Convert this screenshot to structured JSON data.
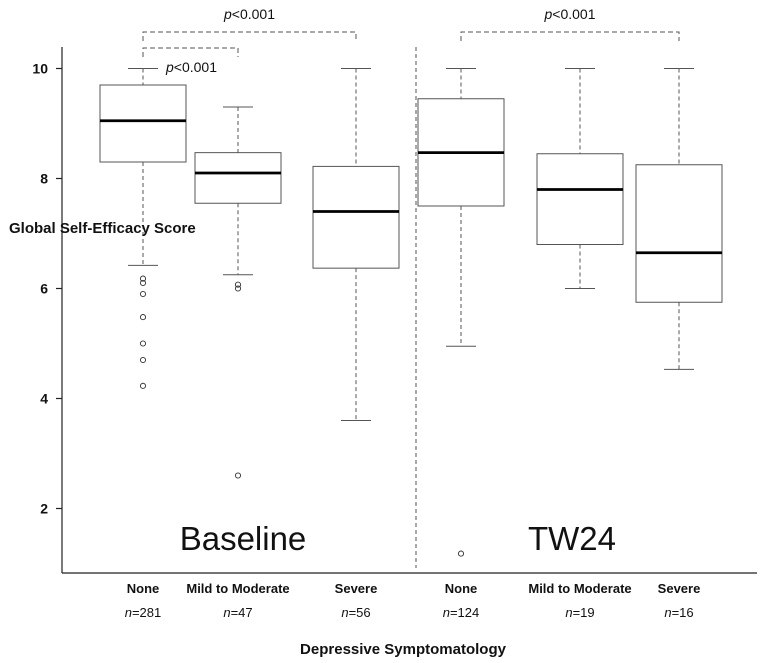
{
  "chart_data": {
    "type": "box",
    "ylabel": "Global Self-Efficacy Score",
    "xlabel": "Depressive Symptomatology",
    "yticks": [
      2,
      4,
      6,
      8,
      10
    ],
    "ylim": [
      0.8,
      10.4
    ],
    "panels": [
      "Baseline",
      "TW24"
    ],
    "groups": [
      {
        "panel": "Baseline",
        "label": "None",
        "n_prefix": "n",
        "n_value": "=281",
        "whisker_low": 6.42,
        "q1": 8.3,
        "median": 9.05,
        "q3": 9.7,
        "whisker_high": 10.0,
        "outliers": [
          6.18,
          6.1,
          5.9,
          5.48,
          5.0,
          4.7,
          4.23
        ]
      },
      {
        "panel": "Baseline",
        "label": "Mild to Moderate",
        "n_prefix": "n",
        "n_value": "=47",
        "whisker_low": 6.25,
        "q1": 7.55,
        "median": 8.1,
        "q3": 8.47,
        "whisker_high": 9.3,
        "outliers": [
          6.07,
          6.0,
          2.6
        ]
      },
      {
        "panel": "Baseline",
        "label": "Severe",
        "n_prefix": "n",
        "n_value": "=56",
        "whisker_low": 3.6,
        "q1": 6.37,
        "median": 7.4,
        "q3": 8.22,
        "whisker_high": 10.0,
        "outliers": []
      },
      {
        "panel": "TW24",
        "label": "None",
        "n_prefix": "n",
        "n_value": "=124",
        "whisker_low": 4.95,
        "q1": 7.5,
        "median": 8.47,
        "q3": 9.45,
        "whisker_high": 10.0,
        "outliers": [
          1.18
        ]
      },
      {
        "panel": "TW24",
        "label": "Mild to Moderate",
        "n_prefix": "n",
        "n_value": "=19",
        "whisker_low": 6.0,
        "q1": 6.8,
        "median": 7.8,
        "q3": 8.45,
        "whisker_high": 10.0,
        "outliers": []
      },
      {
        "panel": "TW24",
        "label": "Severe",
        "n_prefix": "n",
        "n_value": "=16",
        "whisker_low": 4.53,
        "q1": 5.75,
        "median": 6.65,
        "q3": 8.25,
        "whisker_high": 10.0,
        "outliers": []
      }
    ],
    "annotations": [
      {
        "from_group": 0,
        "to_group": 2,
        "p_prefix": "p",
        "p_value": "<0.001"
      },
      {
        "from_group": 0,
        "to_group": 1,
        "p_prefix": "p",
        "p_value": "<0.001"
      },
      {
        "from_group": 3,
        "to_group": 5,
        "p_prefix": "p",
        "p_value": "<0.001"
      }
    ],
    "colors": {
      "box_stroke": "#555555",
      "median": "#000000",
      "whisker": "#555555",
      "axis": "#222222",
      "bracket": "#555555"
    }
  }
}
